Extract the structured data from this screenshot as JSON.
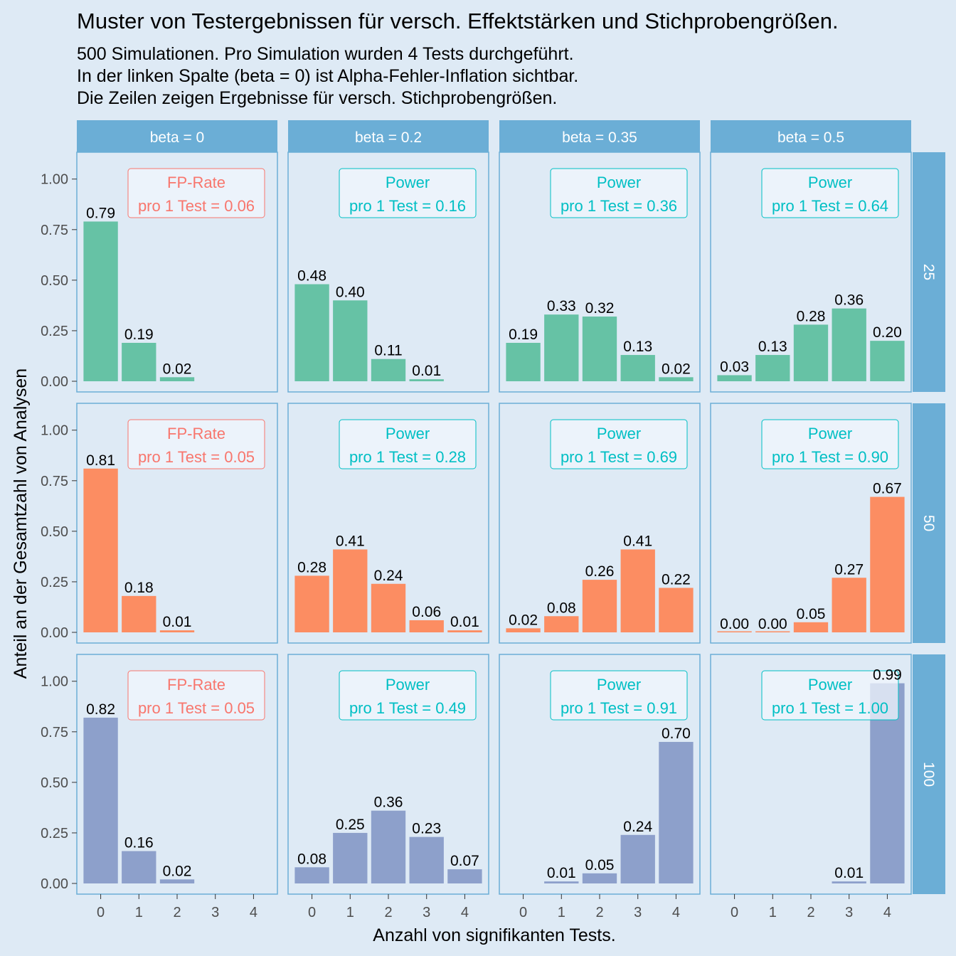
{
  "chart_data": {
    "type": "bar",
    "title": "Muster von Testergebnissen für versch. Effektstärken und Stichprobengrößen.",
    "subtitle": [
      "500 Simulationen. Pro Simulation wurden 4 Tests durchgeführt.",
      "In der linken Spalte (beta = 0) ist Alpha-Fehler-Inflation sichtbar.",
      "Die Zeilen zeigen Ergebnisse für versch. Stichprobengrößen."
    ],
    "xlabel": "Anzahl von signifikanten Tests.",
    "ylabel": "Anteil an der Gesamtzahl von Analysen",
    "categories": [
      "0",
      "1",
      "2",
      "3",
      "4"
    ],
    "y_ticks": [
      "0.00",
      "0.25",
      "0.50",
      "0.75",
      "1.00"
    ],
    "ylim": [
      0,
      1.08
    ],
    "grid": false,
    "columns": [
      "beta = 0",
      "beta = 0.2",
      "beta = 0.35",
      "beta = 0.5"
    ],
    "rows": [
      "25",
      "50",
      "100"
    ],
    "row_colors": [
      "#66c2a5",
      "#fc8d62",
      "#8da0cb"
    ],
    "colors": {
      "background": "#deeaf5",
      "strip": "#6baed6",
      "panel_border": "#6baed6",
      "fp_text": "#f8766d",
      "power_text": "#00bfc4",
      "note_fill": "#f0f6fc"
    },
    "panels": [
      [
        {
          "values": [
            0.79,
            0.19,
            0.02,
            null,
            null
          ],
          "labels": [
            "0.79",
            "0.19",
            "0.02",
            "",
            ""
          ],
          "note": [
            "FP-Rate",
            "pro 1 Test = 0.06"
          ],
          "note_kind": "fp"
        },
        {
          "values": [
            0.48,
            0.4,
            0.11,
            0.01,
            null
          ],
          "labels": [
            "0.48",
            "0.40",
            "0.11",
            "0.01",
            ""
          ],
          "note": [
            "Power",
            "pro 1 Test = 0.16"
          ],
          "note_kind": "power"
        },
        {
          "values": [
            0.19,
            0.33,
            0.32,
            0.13,
            0.02
          ],
          "labels": [
            "0.19",
            "0.33",
            "0.32",
            "0.13",
            "0.02"
          ],
          "note": [
            "Power",
            "pro 1 Test = 0.36"
          ],
          "note_kind": "power"
        },
        {
          "values": [
            0.03,
            0.13,
            0.28,
            0.36,
            0.2
          ],
          "labels": [
            "0.03",
            "0.13",
            "0.28",
            "0.36",
            "0.20"
          ],
          "note": [
            "Power",
            "pro 1 Test = 0.64"
          ],
          "note_kind": "power"
        }
      ],
      [
        {
          "values": [
            0.81,
            0.18,
            0.01,
            null,
            null
          ],
          "labels": [
            "0.81",
            "0.18",
            "0.01",
            "",
            ""
          ],
          "note": [
            "FP-Rate",
            "pro 1 Test = 0.05"
          ],
          "note_kind": "fp"
        },
        {
          "values": [
            0.28,
            0.41,
            0.24,
            0.06,
            0.01
          ],
          "labels": [
            "0.28",
            "0.41",
            "0.24",
            "0.06",
            "0.01"
          ],
          "note": [
            "Power",
            "pro 1 Test = 0.28"
          ],
          "note_kind": "power"
        },
        {
          "values": [
            0.02,
            0.08,
            0.26,
            0.41,
            0.22
          ],
          "labels": [
            "0.02",
            "0.08",
            "0.26",
            "0.41",
            "0.22"
          ],
          "note": [
            "Power",
            "pro 1 Test = 0.69"
          ],
          "note_kind": "power"
        },
        {
          "values": [
            0.0,
            0.0,
            0.05,
            0.27,
            0.67
          ],
          "labels": [
            "0.00",
            "0.00",
            "0.05",
            "0.27",
            "0.67"
          ],
          "note": [
            "Power",
            "pro 1 Test = 0.90"
          ],
          "note_kind": "power"
        }
      ],
      [
        {
          "values": [
            0.82,
            0.16,
            0.02,
            null,
            null
          ],
          "labels": [
            "0.82",
            "0.16",
            "0.02",
            "",
            ""
          ],
          "note": [
            "FP-Rate",
            "pro 1 Test = 0.05"
          ],
          "note_kind": "fp"
        },
        {
          "values": [
            0.08,
            0.25,
            0.36,
            0.23,
            0.07
          ],
          "labels": [
            "0.08",
            "0.25",
            "0.36",
            "0.23",
            "0.07"
          ],
          "note": [
            "Power",
            "pro 1 Test = 0.49"
          ],
          "note_kind": "power"
        },
        {
          "values": [
            null,
            0.01,
            0.05,
            0.24,
            0.7
          ],
          "labels": [
            "",
            "0.01",
            "0.05",
            "0.24",
            "0.70"
          ],
          "note": [
            "Power",
            "pro 1 Test = 0.91"
          ],
          "note_kind": "power"
        },
        {
          "values": [
            null,
            null,
            null,
            0.01,
            0.99
          ],
          "labels": [
            "",
            "",
            "",
            "0.01",
            "0.99"
          ],
          "note": [
            "Power",
            "pro 1 Test = 1.00"
          ],
          "note_kind": "power"
        }
      ]
    ]
  }
}
